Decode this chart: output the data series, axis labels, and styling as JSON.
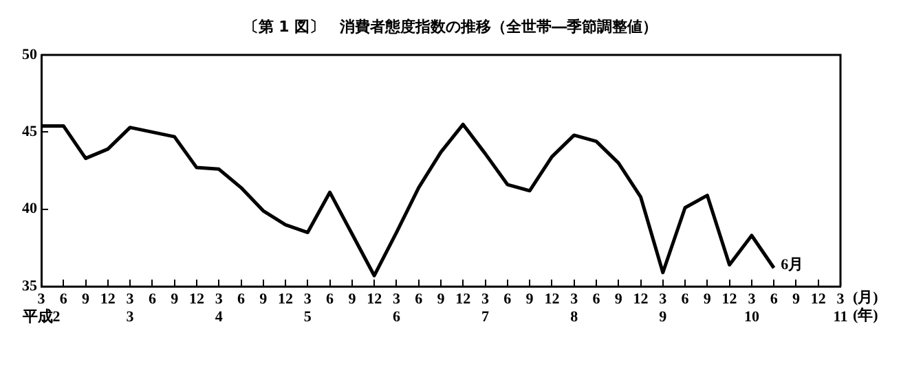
{
  "chart_data": {
    "type": "line",
    "title": "〔第 1 図〕　消費者態度指数の推移（全世帯―季節調整値）",
    "categories": [
      "3\n平成2",
      "6",
      "9",
      "12",
      "3\n3",
      "6",
      "9",
      "12",
      "3\n4",
      "6",
      "9",
      "12",
      "3\n5",
      "6",
      "9",
      "12",
      "3\n6",
      "6",
      "9",
      "12",
      "3\n7",
      "6",
      "9",
      "12",
      "3\n8",
      "6",
      "9",
      "12",
      "3\n9",
      "6",
      "9",
      "12",
      "3\n10",
      "6",
      "9",
      "12",
      "3\n11"
    ],
    "series": [
      {
        "color": "#000000",
        "values": [
          45.4,
          45.4,
          43.3,
          43.9,
          45.3,
          45.0,
          44.7,
          42.7,
          42.6,
          41.4,
          39.9,
          39.0,
          38.5,
          41.1,
          38.4,
          35.7,
          38.5,
          41.4,
          43.7,
          45.5,
          43.6,
          41.6,
          41.2,
          43.4,
          44.8,
          44.4,
          43.0,
          40.8,
          35.9,
          40.1,
          40.9,
          36.4,
          38.3,
          36.2,
          null,
          null,
          null
        ]
      }
    ],
    "ylim": [
      35,
      50
    ],
    "yticks": [
      35,
      40,
      45,
      50
    ],
    "grid": false,
    "legend": false,
    "marker": "none",
    "line_style": "solid",
    "annotations": [
      "6月",
      "(月)\n(年)"
    ]
  }
}
